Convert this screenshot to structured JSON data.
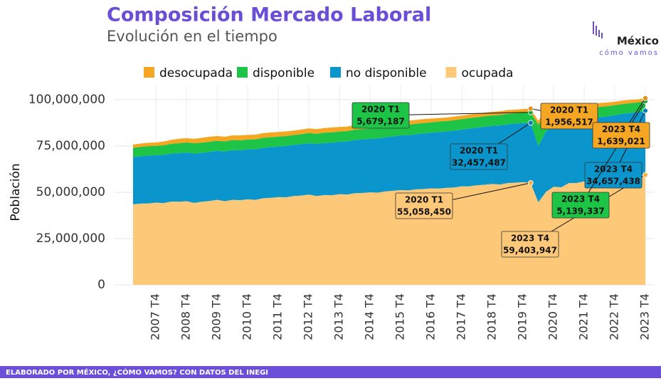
{
  "chart_data": {
    "type": "stacked_area",
    "title": "Composición Mercado Laboral",
    "subtitle": "Evolución en el tiempo",
    "logo": {
      "name": "México",
      "tagline": "cómo vamos"
    },
    "ylabel": "Población",
    "source": "ELABORADO POR MÉXICO, ¿CÓMO VAMOS? CON DATOS DEL INEGI",
    "legend_position": "top",
    "grid": true,
    "ylim": [
      0,
      105000000
    ],
    "yticks": [
      0,
      {
        "value": 25000000,
        "label": "25,000,000"
      },
      {
        "value": 50000000,
        "label": "50,000,000"
      },
      {
        "value": 75000000,
        "label": "75,000,000"
      },
      {
        "value": 100000000,
        "label": "100,000,000"
      }
    ],
    "categories": [
      null,
      null,
      null,
      "2007 T4",
      null,
      null,
      null,
      "2008 T4",
      null,
      null,
      null,
      "2009 T4",
      null,
      null,
      null,
      "2010 T4",
      null,
      null,
      null,
      "2011 T4",
      null,
      null,
      null,
      "2012 T4",
      null,
      null,
      null,
      "2013 T4",
      null,
      null,
      null,
      "2014 T4",
      null,
      null,
      null,
      "2015 T4",
      null,
      null,
      null,
      "2016 T4",
      null,
      null,
      null,
      "2017 T4",
      null,
      null,
      null,
      "2018 T4",
      null,
      null,
      null,
      "2019 T4",
      null,
      null,
      null,
      "2020 T4",
      null,
      null,
      null,
      "2021 T4",
      null,
      null,
      null,
      "2022 T4",
      null,
      null,
      null,
      "2023 T4"
    ],
    "point_labels": [
      null,
      null,
      null,
      null,
      null,
      null,
      null,
      null,
      null,
      null,
      null,
      null,
      null,
      null,
      null,
      null,
      null,
      null,
      null,
      null,
      null,
      null,
      null,
      null,
      null,
      null,
      null,
      null,
      null,
      null,
      null,
      null,
      null,
      null,
      null,
      null,
      null,
      null,
      null,
      null,
      null,
      null,
      null,
      null,
      null,
      null,
      null,
      null,
      null,
      null,
      null,
      null,
      "2020 T1",
      null,
      null,
      null,
      null,
      null,
      null,
      null,
      null,
      null,
      null,
      null,
      null,
      null,
      null,
      "2023 T4"
    ],
    "series": [
      {
        "name": "ocupada",
        "color": "#fdc877",
        "dot": "#f2b24c",
        "values": [
          43500000,
          43900000,
          44000000,
          44400000,
          44200000,
          45000000,
          44900000,
          45200000,
          44300000,
          44900000,
          45300000,
          45900000,
          45200000,
          45900000,
          45700000,
          46200000,
          45900000,
          46800000,
          47000000,
          47400000,
          47300000,
          48000000,
          48200000,
          48800000,
          48000000,
          48500000,
          48400000,
          49000000,
          48800000,
          49500000,
          49600000,
          50000000,
          49800000,
          50500000,
          50800000,
          51200000,
          51000000,
          51600000,
          51800000,
          52100000,
          52000000,
          52400000,
          52600000,
          53200000,
          53200000,
          53800000,
          54100000,
          54500000,
          54200000,
          55000000,
          55200000,
          55500000,
          55058450,
          44600000,
          50200000,
          53000000,
          52700000,
          55000000,
          55000000,
          55900000,
          56200000,
          57500000,
          57600000,
          57900000,
          58200000,
          58900000,
          59000000,
          59403947
        ],
        "value_labels": [
          null,
          null,
          null,
          null,
          null,
          null,
          null,
          null,
          null,
          null,
          null,
          null,
          null,
          null,
          null,
          null,
          null,
          null,
          null,
          null,
          null,
          null,
          null,
          null,
          null,
          null,
          null,
          null,
          null,
          null,
          null,
          null,
          null,
          null,
          null,
          null,
          null,
          null,
          null,
          null,
          null,
          null,
          null,
          null,
          null,
          null,
          null,
          null,
          null,
          null,
          null,
          null,
          "55,058,450",
          null,
          null,
          null,
          null,
          null,
          null,
          null,
          null,
          null,
          null,
          null,
          null,
          null,
          null,
          "59,403,947"
        ]
      },
      {
        "name": "no disponible",
        "color": "#0a96cc",
        "dot": "#0a7fb0",
        "values": [
          25500000,
          25600000,
          25800000,
          25700000,
          26000000,
          25900000,
          26200000,
          26300000,
          26600000,
          26400000,
          26500000,
          26500000,
          26800000,
          26900000,
          27000000,
          27000000,
          27300000,
          27200000,
          27400000,
          27400000,
          27700000,
          27600000,
          27800000,
          27700000,
          28100000,
          28100000,
          28400000,
          28300000,
          28700000,
          28700000,
          28900000,
          28900000,
          29300000,
          29200000,
          29400000,
          29500000,
          29800000,
          29800000,
          30000000,
          30100000,
          30500000,
          30500000,
          30700000,
          30700000,
          31200000,
          31100000,
          31300000,
          31400000,
          31900000,
          31700000,
          31900000,
          31900000,
          32457487,
          30400000,
          32800000,
          32600000,
          33500000,
          32600000,
          33000000,
          32800000,
          33300000,
          33000000,
          33400000,
          33700000,
          34200000,
          33900000,
          34300000,
          34657438
        ],
        "value_labels": [
          null,
          null,
          null,
          null,
          null,
          null,
          null,
          null,
          null,
          null,
          null,
          null,
          null,
          null,
          null,
          null,
          null,
          null,
          null,
          null,
          null,
          null,
          null,
          null,
          null,
          null,
          null,
          null,
          null,
          null,
          null,
          null,
          null,
          null,
          null,
          null,
          null,
          null,
          null,
          null,
          null,
          null,
          null,
          null,
          null,
          null,
          null,
          null,
          null,
          null,
          null,
          null,
          "32,457,487",
          null,
          null,
          null,
          null,
          null,
          null,
          null,
          null,
          null,
          null,
          null,
          null,
          null,
          null,
          "34,657,438"
        ]
      },
      {
        "name": "disponible",
        "color": "#1ec445",
        "dot": "#15a538",
        "values": [
          5000000,
          5000000,
          5100000,
          5000000,
          5200000,
          5300000,
          5400000,
          5400000,
          5600000,
          5500000,
          5500000,
          5400000,
          5500000,
          5400000,
          5400000,
          5300000,
          5400000,
          5400000,
          5300000,
          5300000,
          5400000,
          5300000,
          5400000,
          5500000,
          5500000,
          5600000,
          5600000,
          5500000,
          5600000,
          5600000,
          5700000,
          5600000,
          5700000,
          5700000,
          5600000,
          5600000,
          5700000,
          5600000,
          5600000,
          5600000,
          5700000,
          5600000,
          5600000,
          5600000,
          5700000,
          5600000,
          5700000,
          5600000,
          5700000,
          5700000,
          5600000,
          5700000,
          5679187,
          11500000,
          9000000,
          7500000,
          7000000,
          6600000,
          6200000,
          6000000,
          5800000,
          5600000,
          5500000,
          5400000,
          5300000,
          5300000,
          5200000,
          5139337
        ],
        "value_labels": [
          null,
          null,
          null,
          null,
          null,
          null,
          null,
          null,
          null,
          null,
          null,
          null,
          null,
          null,
          null,
          null,
          null,
          null,
          null,
          null,
          null,
          null,
          null,
          null,
          null,
          null,
          null,
          null,
          null,
          null,
          null,
          null,
          null,
          null,
          null,
          null,
          null,
          null,
          null,
          null,
          null,
          null,
          null,
          null,
          null,
          null,
          null,
          null,
          null,
          null,
          null,
          null,
          "5,679,187",
          null,
          null,
          null,
          null,
          null,
          null,
          null,
          null,
          null,
          null,
          null,
          null,
          null,
          null,
          "5,139,337"
        ]
      },
      {
        "name": "desocupada",
        "color": "#f5a623",
        "dot": "#e0911a",
        "values": [
          1800000,
          1800000,
          1900000,
          1800000,
          2000000,
          2100000,
          2400000,
          2300000,
          2400000,
          2600000,
          2700000,
          2600000,
          2500000,
          2500000,
          2600000,
          2500000,
          2500000,
          2500000,
          2600000,
          2500000,
          2500000,
          2400000,
          2500000,
          2500000,
          2500000,
          2500000,
          2600000,
          2500000,
          2400000,
          2400000,
          2500000,
          2400000,
          2300000,
          2400000,
          2400000,
          2300000,
          2200000,
          2100000,
          2100000,
          2000000,
          1900000,
          1900000,
          2000000,
          1900000,
          1900000,
          1900000,
          1900000,
          1900000,
          2000000,
          2000000,
          1900000,
          1900000,
          1956517,
          2100000,
          2800000,
          2500000,
          2400000,
          2400000,
          2400000,
          2300000,
          2200000,
          2100000,
          2000000,
          1900000,
          1800000,
          1800000,
          1700000,
          1639021
        ],
        "value_labels": [
          null,
          null,
          null,
          null,
          null,
          null,
          null,
          null,
          null,
          null,
          null,
          null,
          null,
          null,
          null,
          null,
          null,
          null,
          null,
          null,
          null,
          null,
          null,
          null,
          null,
          null,
          null,
          null,
          null,
          null,
          null,
          null,
          null,
          null,
          null,
          null,
          null,
          null,
          null,
          null,
          null,
          null,
          null,
          null,
          null,
          null,
          null,
          null,
          null,
          null,
          null,
          null,
          "1,956,517",
          null,
          null,
          null,
          null,
          null,
          null,
          null,
          null,
          null,
          null,
          null,
          null,
          null,
          null,
          "1,639,021"
        ]
      }
    ]
  }
}
